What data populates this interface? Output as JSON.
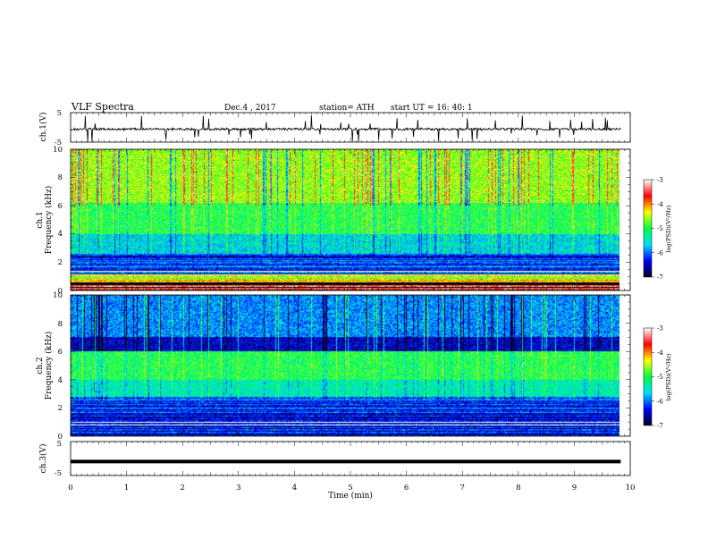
{
  "header": {
    "title": "VLF  Spectra",
    "date": "Dec.4  , 2017",
    "station": "station= ATH",
    "start": "start  UT  =    16: 40: 1"
  },
  "chart_data": [
    {
      "type": "line",
      "title": "",
      "ylabel": "ch.1(V)",
      "ylim": [
        -5,
        5
      ],
      "yticks": [
        "5",
        "-5"
      ],
      "xlim": [
        0,
        10
      ],
      "description_values": {
        "baseline_V": -0.6,
        "noise_V": 0.5
      }
    },
    {
      "type": "heatmap",
      "ylabel_channel": "ch.1",
      "ylabel": "Frequency  (kHz)",
      "ylim": [
        0,
        10
      ],
      "yticks": [
        "0",
        "2",
        "4",
        "6",
        "8",
        "10"
      ],
      "xlim": [
        0,
        10
      ],
      "colorbar": {
        "label": "log(PSD)(V²/Hz)",
        "ticks": [
          "-3",
          "-4",
          "-5",
          "-6",
          "-7"
        ],
        "range": [
          -7,
          -3
        ]
      },
      "bands_logpsd": [
        {
          "f": [
            0.0,
            0.4
          ],
          "v": -3.4
        },
        {
          "f": [
            0.4,
            0.6
          ],
          "v": -6.9
        },
        {
          "f": [
            0.6,
            1.2
          ],
          "v": -4.4
        },
        {
          "f": [
            1.2,
            2.6
          ],
          "v": -6.2
        },
        {
          "f": [
            2.6,
            4.0
          ],
          "v": -5.6
        },
        {
          "f": [
            4.0,
            6.2
          ],
          "v": -5.0
        },
        {
          "f": [
            6.2,
            10.0
          ],
          "v": -4.6
        }
      ]
    },
    {
      "type": "heatmap",
      "ylabel_channel": "ch.2",
      "ylabel": "Frequency  (kHz)",
      "ylim": [
        0,
        10
      ],
      "yticks": [
        "0",
        "2",
        "4",
        "6",
        "8",
        "10"
      ],
      "xlim": [
        0,
        10
      ],
      "colorbar": {
        "label": "log(PSD)(V²/Hz)",
        "ticks": [
          "-3",
          "-4",
          "-5",
          "-6",
          "-7"
        ],
        "range": [
          -7,
          -3
        ]
      },
      "bands_logpsd": [
        {
          "f": [
            0.0,
            1.8
          ],
          "v": -6.3
        },
        {
          "f": [
            1.8,
            2.8
          ],
          "v": -6.1
        },
        {
          "f": [
            2.8,
            4.0
          ],
          "v": -5.4
        },
        {
          "f": [
            4.0,
            6.0
          ],
          "v": -5.0
        },
        {
          "f": [
            6.0,
            7.0
          ],
          "v": -6.5
        },
        {
          "f": [
            7.0,
            10.0
          ],
          "v": -5.9
        }
      ]
    },
    {
      "type": "line",
      "title": "",
      "ylabel": "ch.3(V)",
      "ylim": [
        -5,
        5
      ],
      "yticks": [
        "5",
        "-5"
      ],
      "xlim": [
        0,
        10
      ],
      "description_values": {
        "baseline_V": -0.9,
        "noise_V": 0.0
      }
    }
  ],
  "xaxis": {
    "label": "Time  (min)",
    "ticks": [
      "0",
      "1",
      "2",
      "3",
      "4",
      "5",
      "6",
      "7",
      "8",
      "9",
      "10"
    ],
    "range": [
      0,
      10
    ],
    "data_end_min": 9.83
  },
  "colors": {
    "cmap": [
      "#00001e",
      "#0000ff",
      "#00e0ff",
      "#00ff40",
      "#ffff00",
      "#ff0000",
      "#ffffff"
    ]
  }
}
